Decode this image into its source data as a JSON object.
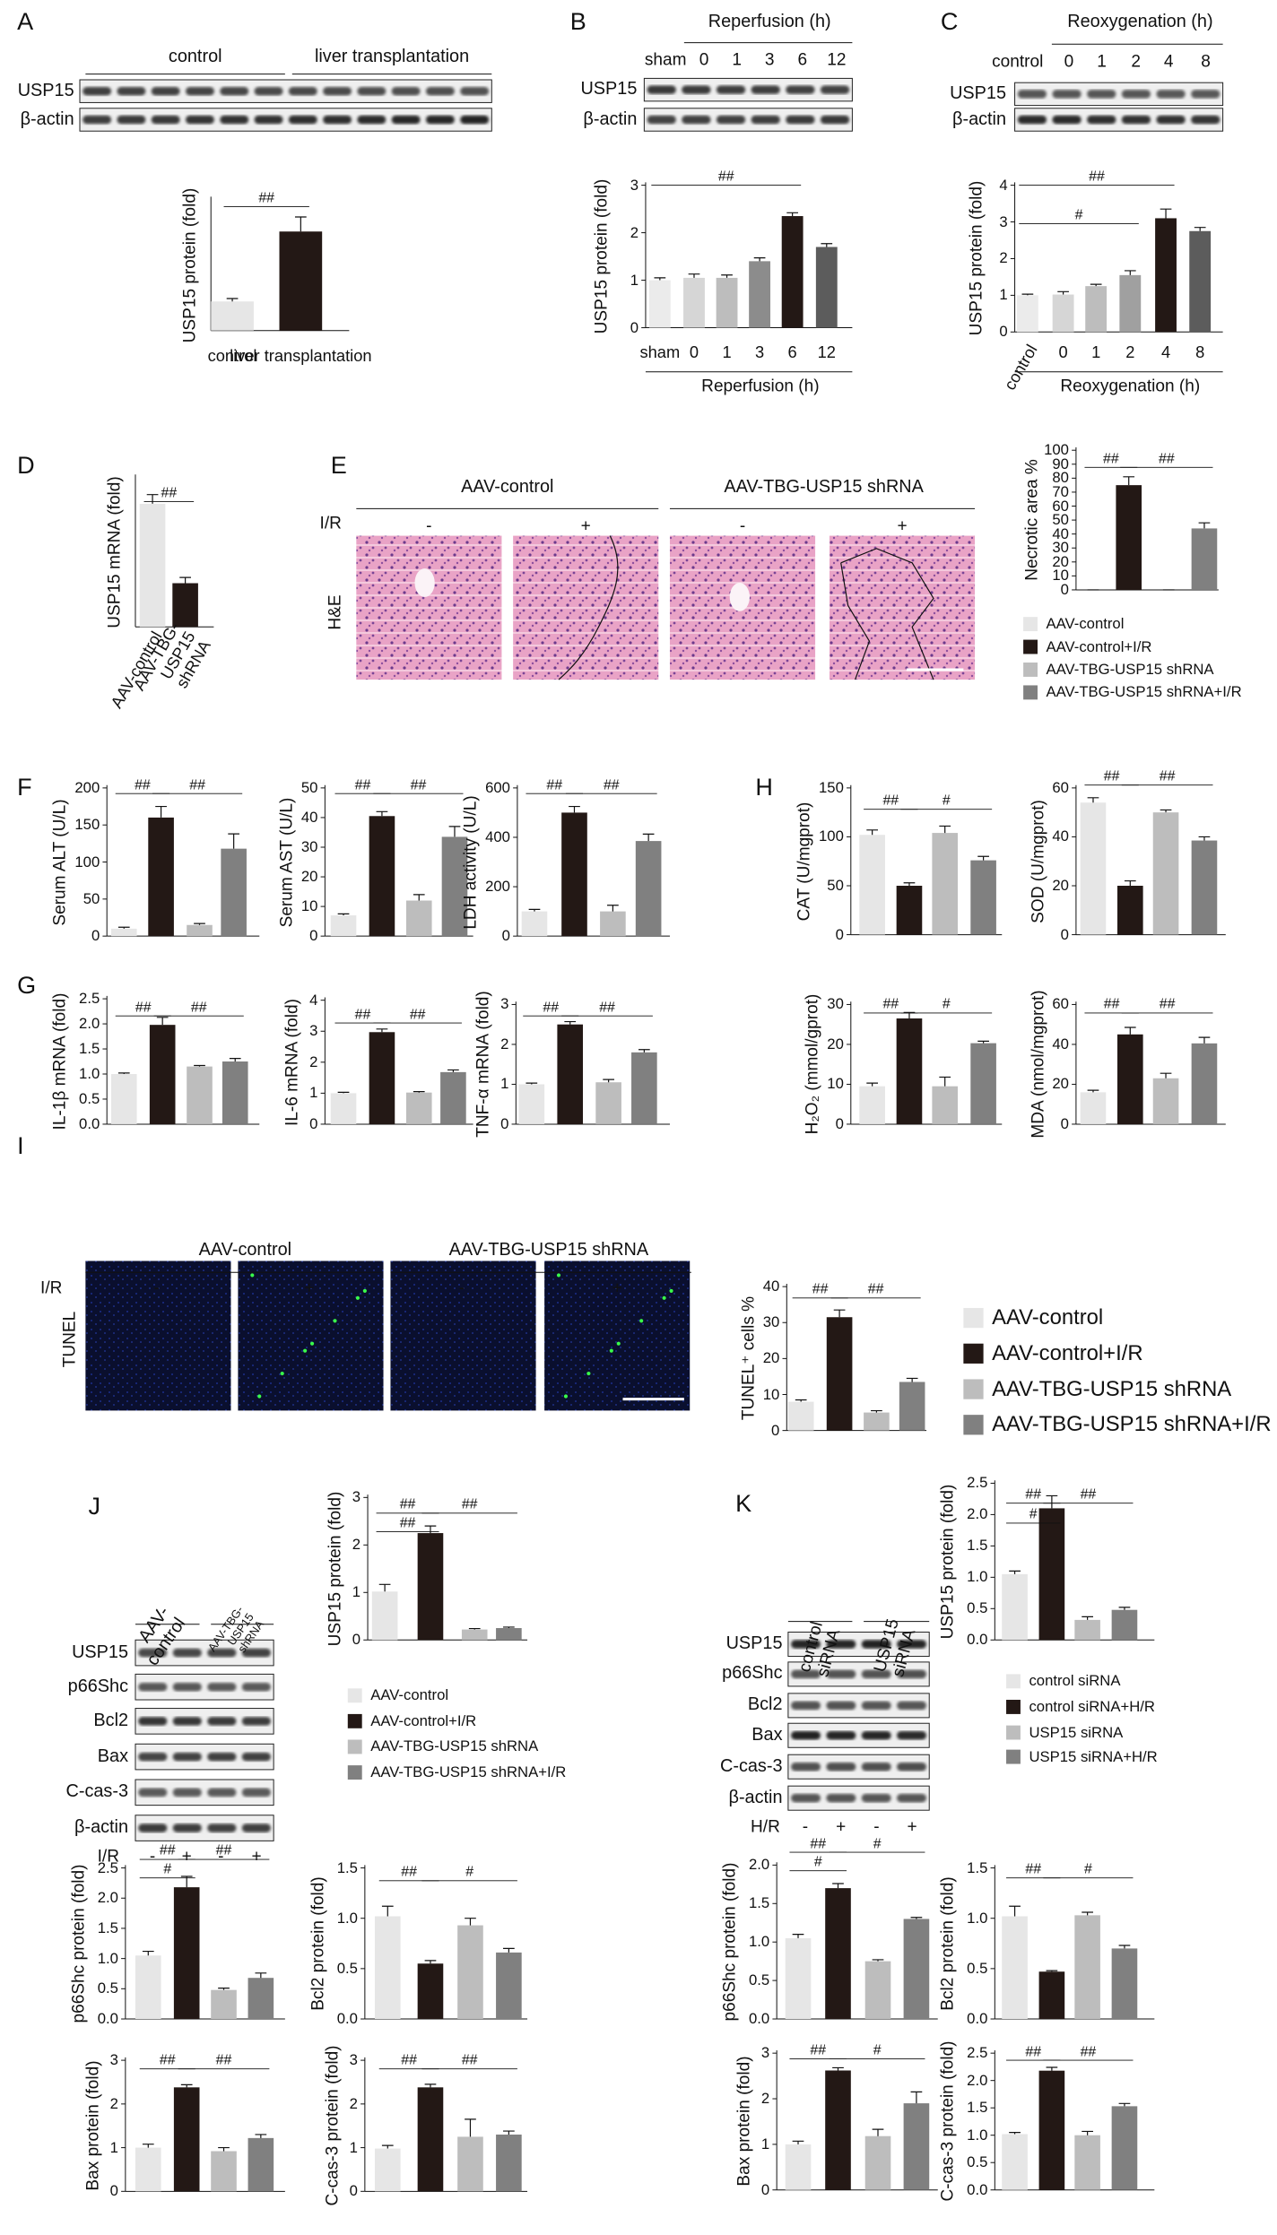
{
  "chart_data": [
    {
      "type": "bar",
      "ylabel": "USP15 protein (fold)",
      "categories": [
        "control",
        "liver transplantation"
      ],
      "values": [
        1,
        3.4
      ],
      "errors": [
        0.1,
        0.5
      ],
      "colors": [
        "#e6e6e6",
        "#231815"
      ],
      "ylim": [
        0,
        4.5
      ],
      "annotations": [
        "##"
      ]
    },
    {
      "type": "bar",
      "ylabel": "USP15 protein (fold)",
      "categories": [
        "sham",
        "0",
        "1",
        "3",
        "6",
        "12"
      ],
      "xlabel": "Reperfusion (h)",
      "values": [
        1,
        1.05,
        1.05,
        1.4,
        2.35,
        1.7
      ],
      "errors": [
        0.05,
        0.08,
        0.06,
        0.07,
        0.07,
        0.07
      ],
      "colors": [
        "#ebebeb",
        "#d6d6d6",
        "#bdbdbd",
        "#8c8c8c",
        "#231815",
        "#5c5c5c"
      ],
      "ylim": [
        0,
        3
      ],
      "yticks": [
        0,
        1,
        2,
        3
      ],
      "annotations": [
        "##"
      ]
    },
    {
      "type": "bar",
      "ylabel": "USP15 protein (fold)",
      "categories": [
        "control",
        "0",
        "1",
        "2",
        "4",
        "8"
      ],
      "xlabel": "Reoxygenation (h)",
      "values": [
        1,
        1.02,
        1.25,
        1.55,
        3.1,
        2.75
      ],
      "errors": [
        0.03,
        0.08,
        0.05,
        0.12,
        0.25,
        0.1
      ],
      "colors": [
        "#ebebeb",
        "#d6d6d6",
        "#bdbdbd",
        "#a0a0a0",
        "#231815",
        "#5c5c5c"
      ],
      "ylim": [
        0,
        4
      ],
      "yticks": [
        0,
        1,
        2,
        3,
        4
      ],
      "annotations": [
        "#",
        "##"
      ]
    },
    {
      "type": "bar",
      "ylabel": "USP15 mRNA (fold)",
      "categories": [
        "AAV-control",
        "AAV-TBG-USP15 shRNA"
      ],
      "values": [
        1.07,
        0.38
      ],
      "errors": [
        0.08,
        0.05
      ],
      "colors": [
        "#e6e6e6",
        "#231815"
      ],
      "ylim": [
        0,
        1.3
      ],
      "annotations": [
        "##"
      ]
    },
    {
      "type": "bar",
      "ylabel": "Necrotic area %",
      "values": [
        0,
        75,
        0,
        44
      ],
      "errors": [
        0,
        6,
        0,
        4
      ],
      "colors": [
        "#e6e6e6",
        "#231815",
        "#bdbdbd",
        "#808080"
      ],
      "ylim": [
        0,
        100
      ],
      "yticks": [
        0,
        10,
        20,
        30,
        40,
        50,
        60,
        70,
        80,
        90,
        100
      ],
      "annotations": [
        "##",
        "##"
      ]
    },
    {
      "type": "bar",
      "ylabel": "Serum ALT (U/L)",
      "values": [
        10,
        160,
        15,
        118
      ],
      "errors": [
        2,
        15,
        2,
        20
      ],
      "colors": [
        "#e6e6e6",
        "#231815",
        "#bdbdbd",
        "#808080"
      ],
      "ylim": [
        0,
        200
      ],
      "yticks": [
        0,
        50,
        100,
        150,
        200
      ],
      "annotations": [
        "##",
        "##"
      ]
    },
    {
      "type": "bar",
      "ylabel": "Serum AST (U/L)",
      "values": [
        7,
        40.5,
        12,
        33.5
      ],
      "errors": [
        0.5,
        1.5,
        2,
        3.5
      ],
      "colors": [
        "#e6e6e6",
        "#231815",
        "#bdbdbd",
        "#808080"
      ],
      "ylim": [
        0,
        50
      ],
      "yticks": [
        0,
        10,
        20,
        30,
        40,
        50
      ],
      "annotations": [
        "##",
        "##"
      ]
    },
    {
      "type": "bar",
      "ylabel": "LDH activity (U/L)",
      "values": [
        100,
        500,
        100,
        385
      ],
      "errors": [
        8,
        25,
        25,
        28
      ],
      "colors": [
        "#e6e6e6",
        "#231815",
        "#bdbdbd",
        "#808080"
      ],
      "ylim": [
        0,
        600
      ],
      "yticks": [
        0,
        200,
        400,
        600
      ],
      "annotations": [
        "##",
        "##"
      ]
    },
    {
      "type": "bar",
      "ylabel": "CAT (U/mgprot)",
      "values": [
        102,
        50,
        104,
        76
      ],
      "errors": [
        5,
        3,
        7,
        4
      ],
      "colors": [
        "#e6e6e6",
        "#231815",
        "#bdbdbd",
        "#808080"
      ],
      "ylim": [
        0,
        150
      ],
      "yticks": [
        0,
        50,
        100,
        150
      ],
      "annotations": [
        "##",
        "#"
      ]
    },
    {
      "type": "bar",
      "ylabel": "SOD (U/mgprot)",
      "values": [
        54,
        20,
        50,
        38.5
      ],
      "errors": [
        2,
        2,
        1,
        1.5
      ],
      "colors": [
        "#e6e6e6",
        "#231815",
        "#bdbdbd",
        "#808080"
      ],
      "ylim": [
        0,
        60
      ],
      "yticks": [
        0,
        20,
        40,
        60
      ],
      "annotations": [
        "##",
        "##"
      ]
    },
    {
      "type": "bar",
      "ylabel": "IL-1β mRNA (fold)",
      "values": [
        1,
        1.98,
        1.15,
        1.25
      ],
      "errors": [
        0.02,
        0.15,
        0.02,
        0.06
      ],
      "colors": [
        "#e6e6e6",
        "#231815",
        "#bdbdbd",
        "#808080"
      ],
      "ylim": [
        0,
        2.5
      ],
      "yticks": [
        {
          "value": 0,
          "label": "0.0"
        },
        0.5,
        {
          "value": 1,
          "label": "1.0"
        },
        1.5,
        {
          "value": 2,
          "label": "2.0"
        },
        2.5
      ],
      "annotations": [
        "##",
        "##"
      ]
    },
    {
      "type": "bar",
      "ylabel": "IL-6 mRNA (fold)",
      "values": [
        1,
        2.97,
        1.02,
        1.68
      ],
      "errors": [
        0.03,
        0.1,
        0.03,
        0.07
      ],
      "colors": [
        "#e6e6e6",
        "#231815",
        "#bdbdbd",
        "#808080"
      ],
      "ylim": [
        0,
        4
      ],
      "yticks": [
        0,
        1,
        2,
        3,
        4
      ],
      "annotations": [
        "##",
        "##"
      ]
    },
    {
      "type": "bar",
      "ylabel": "TNF-α mRNA (fold)",
      "values": [
        1,
        2.5,
        1.05,
        1.8
      ],
      "errors": [
        0.03,
        0.07,
        0.07,
        0.07
      ],
      "colors": [
        "#e6e6e6",
        "#231815",
        "#bdbdbd",
        "#808080"
      ],
      "ylim": [
        0,
        3
      ],
      "yticks": [
        0,
        1,
        2,
        3
      ],
      "annotations": [
        "##",
        "##"
      ]
    },
    {
      "type": "bar",
      "ylabel": "H₂O₂ (mmol/gprot)",
      "values": [
        9.5,
        26.5,
        9.5,
        20.3
      ],
      "errors": [
        0.8,
        1.5,
        2.3,
        0.5
      ],
      "colors": [
        "#e6e6e6",
        "#231815",
        "#bdbdbd",
        "#808080"
      ],
      "ylim": [
        0,
        30
      ],
      "yticks": [
        0,
        10,
        20,
        30
      ],
      "annotations": [
        "##",
        "#"
      ]
    },
    {
      "type": "bar",
      "ylabel": "MDA (nmol/mgprot)",
      "values": [
        16,
        45,
        23,
        40.5
      ],
      "errors": [
        1,
        3.5,
        2.5,
        3
      ],
      "colors": [
        "#e6e6e6",
        "#231815",
        "#bdbdbd",
        "#808080"
      ],
      "ylim": [
        0,
        60
      ],
      "yticks": [
        0,
        20,
        40,
        60
      ],
      "annotations": [
        "##",
        "##"
      ]
    },
    {
      "type": "bar",
      "ylabel": "TUNEL⁺ cells %",
      "values": [
        8,
        31.5,
        5,
        13.5
      ],
      "errors": [
        0.5,
        2,
        0.5,
        1
      ],
      "colors": [
        "#e6e6e6",
        "#231815",
        "#bdbdbd",
        "#808080"
      ],
      "ylim": [
        0,
        40
      ],
      "yticks": [
        0,
        10,
        20,
        30,
        40
      ],
      "annotations": [
        "##",
        "##"
      ]
    },
    {
      "type": "bar",
      "ylabel": "USP15 protein (fold)",
      "values": [
        1.02,
        2.25,
        0.22,
        0.25
      ],
      "errors": [
        0.15,
        0.15,
        0.02,
        0.02
      ],
      "colors": [
        "#e6e6e6",
        "#231815",
        "#bdbdbd",
        "#808080"
      ],
      "ylim": [
        0,
        3
      ],
      "yticks": [
        0,
        1,
        2,
        3
      ],
      "annotations": [
        "##",
        "##",
        "##"
      ]
    },
    {
      "type": "bar",
      "ylabel": "p66Shc protein (fold)",
      "values": [
        1.05,
        2.18,
        0.48,
        0.68
      ],
      "errors": [
        0.07,
        0.18,
        0.03,
        0.08
      ],
      "colors": [
        "#e6e6e6",
        "#231815",
        "#bdbdbd",
        "#808080"
      ],
      "ylim": [
        0,
        2.5
      ],
      "yticks": [
        {
          "value": 0,
          "label": "0.0"
        },
        0.5,
        {
          "value": 1,
          "label": "1.0"
        },
        1.5,
        {
          "value": 2,
          "label": "2.0"
        },
        2.5
      ],
      "annotations": [
        "#",
        "##",
        "##"
      ]
    },
    {
      "type": "bar",
      "ylabel": "Bcl2 protein (fold)",
      "values": [
        1.02,
        0.55,
        0.93,
        0.66
      ],
      "errors": [
        0.1,
        0.03,
        0.07,
        0.04
      ],
      "colors": [
        "#e6e6e6",
        "#231815",
        "#bdbdbd",
        "#808080"
      ],
      "ylim": [
        0,
        1.5
      ],
      "yticks": [
        {
          "value": 0,
          "label": "0.0"
        },
        0.5,
        {
          "value": 1,
          "label": "1.0"
        },
        1.5
      ],
      "annotations": [
        "##",
        "#"
      ]
    },
    {
      "type": "bar",
      "ylabel": "Bax protein (fold)",
      "values": [
        1,
        2.38,
        0.92,
        1.22
      ],
      "errors": [
        0.08,
        0.06,
        0.08,
        0.08
      ],
      "colors": [
        "#e6e6e6",
        "#231815",
        "#bdbdbd",
        "#808080"
      ],
      "ylim": [
        0,
        3
      ],
      "yticks": [
        0,
        1,
        2,
        3
      ],
      "annotations": [
        "##",
        "##"
      ]
    },
    {
      "type": "bar",
      "ylabel": "C-cas-3 protein (fold)",
      "values": [
        0.98,
        2.38,
        1.25,
        1.3
      ],
      "errors": [
        0.07,
        0.07,
        0.4,
        0.08
      ],
      "colors": [
        "#e6e6e6",
        "#231815",
        "#bdbdbd",
        "#808080"
      ],
      "ylim": [
        0,
        3
      ],
      "yticks": [
        0,
        1,
        2,
        3
      ],
      "annotations": [
        "##",
        "##"
      ]
    },
    {
      "type": "bar",
      "ylabel": "USP15 protein (fold)",
      "values": [
        1.05,
        2.1,
        0.32,
        0.48
      ],
      "errors": [
        0.05,
        0.2,
        0.05,
        0.04
      ],
      "colors": [
        "#e6e6e6",
        "#231815",
        "#bdbdbd",
        "#808080"
      ],
      "ylim": [
        0,
        2.5
      ],
      "yticks": [
        {
          "value": 0,
          "label": "0.0"
        },
        0.5,
        {
          "value": 1,
          "label": "1.0"
        },
        1.5,
        {
          "value": 2,
          "label": "2.0"
        },
        2.5
      ],
      "annotations": [
        "#",
        "##",
        "##"
      ]
    },
    {
      "type": "bar",
      "ylabel": "p66Shc protein (fold)",
      "values": [
        1.05,
        1.7,
        0.75,
        1.3
      ],
      "errors": [
        0.05,
        0.06,
        0.02,
        0.02
      ],
      "colors": [
        "#e6e6e6",
        "#231815",
        "#bdbdbd",
        "#808080"
      ],
      "ylim": [
        0,
        2
      ],
      "yticks": [
        {
          "value": 0,
          "label": "0.0"
        },
        0.5,
        {
          "value": 1,
          "label": "1.0"
        },
        1.5,
        {
          "value": 2,
          "label": "2.0"
        }
      ],
      "annotations": [
        "#",
        "##",
        "#"
      ]
    },
    {
      "type": "bar",
      "ylabel": "Bcl2 protein (fold)",
      "values": [
        1.02,
        0.47,
        1.03,
        0.7
      ],
      "errors": [
        0.1,
        0.01,
        0.03,
        0.03
      ],
      "colors": [
        "#e6e6e6",
        "#231815",
        "#bdbdbd",
        "#808080"
      ],
      "ylim": [
        0,
        1.5
      ],
      "yticks": [
        {
          "value": 0,
          "label": "0.0"
        },
        0.5,
        {
          "value": 1,
          "label": "1.0"
        },
        1.5
      ],
      "annotations": [
        "##",
        "#"
      ]
    },
    {
      "type": "bar",
      "ylabel": "Bax protein (fold)",
      "values": [
        1,
        2.62,
        1.18,
        1.9
      ],
      "errors": [
        0.07,
        0.06,
        0.15,
        0.25
      ],
      "colors": [
        "#e6e6e6",
        "#231815",
        "#bdbdbd",
        "#808080"
      ],
      "ylim": [
        0,
        3
      ],
      "yticks": [
        0,
        1,
        2,
        3
      ],
      "annotations": [
        "##",
        "#"
      ]
    },
    {
      "type": "bar",
      "ylabel": "C-cas-3 protein (fold)",
      "values": [
        1.02,
        2.18,
        1,
        1.53
      ],
      "errors": [
        0.03,
        0.06,
        0.07,
        0.05
      ],
      "colors": [
        "#e6e6e6",
        "#231815",
        "#bdbdbd",
        "#808080"
      ],
      "ylim": [
        0,
        2.5
      ],
      "yticks": [
        {
          "value": 0,
          "label": "0.0"
        },
        0.5,
        {
          "value": 1,
          "label": "1.0"
        },
        1.5,
        {
          "value": 2,
          "label": "2.0"
        },
        2.5
      ],
      "annotations": [
        "##",
        "##"
      ]
    }
  ],
  "panels": {
    "A": {
      "letter": "A",
      "groups": [
        "control",
        "liver transplantation"
      ],
      "rows": [
        "USP15",
        "β-actin"
      ]
    },
    "B": {
      "letter": "B",
      "header": "Reperfusion (h)",
      "lanes": [
        "sham",
        "0",
        "1",
        "3",
        "6",
        "12"
      ],
      "rows": [
        "USP15",
        "β-actin"
      ]
    },
    "C": {
      "letter": "C",
      "header": "Reoxygenation (h)",
      "lanes": [
        "control",
        "0",
        "1",
        "2",
        "4",
        "8"
      ],
      "rows": [
        "USP15",
        "β-actin"
      ]
    },
    "D": {
      "letter": "D"
    },
    "E": {
      "letter": "E",
      "groups": [
        "AAV-control",
        "AAV-TBG-USP15 shRNA"
      ],
      "treatment": "I/R",
      "signs": [
        "-",
        "+",
        "-",
        "+"
      ],
      "stain": "H&E",
      "legend": {
        "items": [
          "AAV-control",
          "AAV-control+I/R",
          "AAV-TBG-USP15 shRNA",
          "AAV-TBG-USP15 shRNA+I/R"
        ],
        "colors": [
          "#e6e6e6",
          "#231815",
          "#bdbdbd",
          "#808080"
        ]
      }
    },
    "F": {
      "letter": "F"
    },
    "G": {
      "letter": "G"
    },
    "H": {
      "letter": "H"
    },
    "I": {
      "letter": "I",
      "groups": [
        "AAV-control",
        "AAV-TBG-USP15 shRNA"
      ],
      "treatment": "I/R",
      "signs": [
        "-",
        "+",
        "-",
        "+"
      ],
      "stain": "TUNEL",
      "legend": {
        "items": [
          "AAV-control",
          "AAV-control+I/R",
          "AAV-TBG-USP15 shRNA",
          "AAV-TBG-USP15 shRNA+I/R"
        ],
        "colors": [
          "#e6e6e6",
          "#231815",
          "#bdbdbd",
          "#808080"
        ]
      }
    },
    "J": {
      "letter": "J",
      "groups": [
        "AAV-control",
        "AAV-TBG-USP15 shRNA"
      ],
      "rows": [
        "USP15",
        "p66Shc",
        "Bcl2",
        "Bax",
        "C-cas-3",
        "β-actin"
      ],
      "treatment": "I/R",
      "signs": [
        "-",
        "+",
        "-",
        "+"
      ],
      "legend": {
        "items": [
          "AAV-control",
          "AAV-control+I/R",
          "AAV-TBG-USP15 shRNA",
          "AAV-TBG-USP15 shRNA+I/R"
        ],
        "colors": [
          "#e6e6e6",
          "#231815",
          "#bdbdbd",
          "#808080"
        ]
      }
    },
    "K": {
      "letter": "K",
      "groups": [
        "control siRNA",
        "USP15 siRNA"
      ],
      "rows": [
        "USP15",
        "p66Shc",
        "Bcl2",
        "Bax",
        "C-cas-3",
        "β-actin"
      ],
      "treatment": "H/R",
      "signs": [
        "-",
        "+",
        "-",
        "+"
      ],
      "legend": {
        "items": [
          "control siRNA",
          "control siRNA+H/R",
          "USP15 siRNA",
          "USP15 siRNA+H/R"
        ],
        "colors": [
          "#e6e6e6",
          "#231815",
          "#bdbdbd",
          "#808080"
        ]
      }
    }
  }
}
